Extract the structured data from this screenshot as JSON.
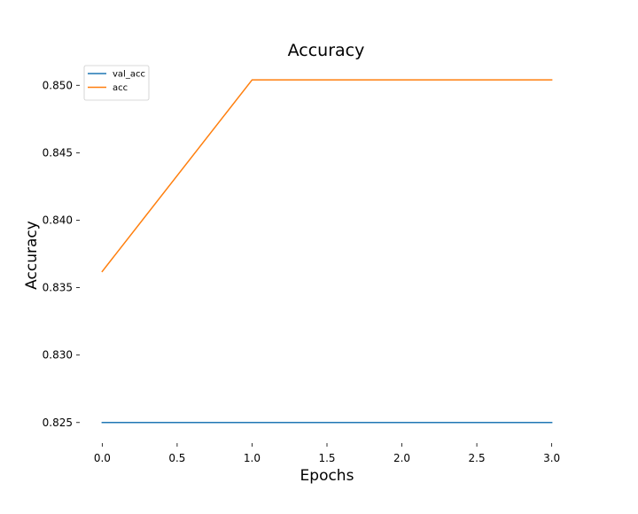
{
  "chart_data": {
    "type": "line",
    "title": "Accuracy",
    "xlabel": "Epochs",
    "ylabel": "Accuracy",
    "xlim": [
      -0.15,
      3.15
    ],
    "ylim": [
      0.824,
      0.8512
    ],
    "xticks": [
      0.0,
      0.5,
      1.0,
      1.5,
      2.0,
      2.5,
      3.0
    ],
    "xtick_labels": [
      "0.0",
      "0.5",
      "1.0",
      "1.5",
      "2.0",
      "2.5",
      "3.0"
    ],
    "yticks": [
      0.825,
      0.83,
      0.835,
      0.84,
      0.845,
      0.85
    ],
    "ytick_labels": [
      "0.825",
      "0.830",
      "0.835",
      "0.840",
      "0.845",
      "0.850"
    ],
    "grid": false,
    "legend_position": "top-left",
    "series": [
      {
        "name": "val_acc",
        "color": "#1f77b4",
        "x": [
          0,
          1,
          2,
          3
        ],
        "y": [
          0.825,
          0.825,
          0.825,
          0.825
        ]
      },
      {
        "name": "acc",
        "color": "#ff7f0e",
        "x": [
          0,
          1,
          2,
          3
        ],
        "y": [
          0.8362,
          0.8504,
          0.8504,
          0.8504
        ]
      }
    ]
  }
}
